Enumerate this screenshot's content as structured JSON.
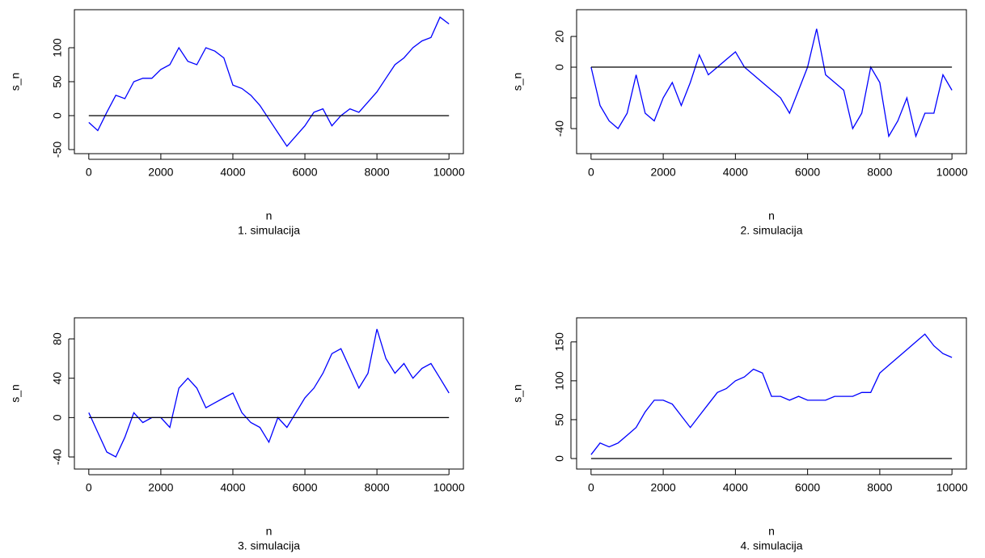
{
  "chart_data": [
    {
      "type": "line",
      "xlabel": "n",
      "ylabel": "s_n",
      "subtitle": "1. simulacija",
      "xlim": [
        -400,
        10400
      ],
      "ylim": [
        -56,
        156
      ],
      "xticks": [
        0,
        2000,
        4000,
        6000,
        8000,
        10000
      ],
      "yticks": [
        -50,
        0,
        50,
        100
      ],
      "series": [
        {
          "color": "#0000ff",
          "x": [
            0,
            250,
            500,
            750,
            1000,
            1250,
            1500,
            1750,
            2000,
            2250,
            2500,
            2750,
            3000,
            3250,
            3500,
            3750,
            4000,
            4250,
            4500,
            4750,
            5000,
            5250,
            5500,
            5750,
            6000,
            6250,
            6500,
            6750,
            7000,
            7250,
            7500,
            7750,
            8000,
            8250,
            8500,
            8750,
            9000,
            9250,
            9500,
            9750,
            10000
          ],
          "values": [
            -10,
            -22,
            5,
            30,
            25,
            50,
            55,
            55,
            68,
            75,
            100,
            80,
            75,
            100,
            95,
            85,
            45,
            40,
            30,
            15,
            -5,
            -25,
            -45,
            -30,
            -15,
            5,
            10,
            -15,
            0,
            10,
            5,
            20,
            35,
            55,
            75,
            85,
            100,
            110,
            115,
            145,
            135
          ]
        },
        {
          "color": "#000000",
          "x": [
            0,
            10000
          ],
          "values": [
            0,
            0
          ]
        }
      ]
    },
    {
      "type": "line",
      "xlabel": "n",
      "ylabel": "s_n",
      "subtitle": "2. simulacija",
      "xlim": [
        -400,
        10400
      ],
      "ylim": [
        -56.3,
        37.4
      ],
      "xticks": [
        0,
        2000,
        4000,
        6000,
        8000,
        10000
      ],
      "yticks": [
        -40,
        {
          "value": -20,
          "label": null
        },
        0,
        20
      ],
      "series": [
        {
          "color": "#0000ff",
          "x": [
            0,
            250,
            500,
            750,
            1000,
            1250,
            1500,
            1750,
            2000,
            2250,
            2500,
            2750,
            3000,
            3250,
            3500,
            3750,
            4000,
            4250,
            4500,
            4750,
            5000,
            5250,
            5500,
            5750,
            6000,
            6250,
            6500,
            6750,
            7000,
            7250,
            7500,
            7750,
            8000,
            8250,
            8500,
            8750,
            9000,
            9250,
            9500,
            9750,
            10000
          ],
          "values": [
            0,
            -25,
            -35,
            -40,
            -30,
            -5,
            -30,
            -35,
            -20,
            -10,
            -25,
            -10,
            8,
            -5,
            0,
            5,
            10,
            0,
            -5,
            -10,
            -15,
            -20,
            -30,
            -15,
            0,
            25,
            -5,
            -10,
            -15,
            -40,
            -30,
            0,
            -10,
            -45,
            -35,
            -20,
            -45,
            -30,
            -30,
            -5,
            -15
          ]
        },
        {
          "color": "#000000",
          "x": [
            0,
            10000
          ],
          "values": [
            0,
            0
          ]
        }
      ]
    },
    {
      "type": "line",
      "xlabel": "n",
      "ylabel": "s_n",
      "subtitle": "3. simulacija",
      "xlim": [
        -400,
        10400
      ],
      "ylim": [
        -52.3,
        101.4
      ],
      "xticks": [
        0,
        2000,
        4000,
        6000,
        8000,
        10000
      ],
      "yticks": [
        -40,
        0,
        40,
        80
      ],
      "series": [
        {
          "color": "#0000ff",
          "x": [
            0,
            250,
            500,
            750,
            1000,
            1250,
            1500,
            1750,
            2000,
            2250,
            2500,
            2750,
            3000,
            3250,
            3500,
            3750,
            4000,
            4250,
            4500,
            4750,
            5000,
            5250,
            5500,
            5750,
            6000,
            6250,
            6500,
            6750,
            7000,
            7250,
            7500,
            7750,
            8000,
            8250,
            8500,
            8750,
            9000,
            9250,
            9500,
            9750,
            10000
          ],
          "values": [
            5,
            -15,
            -35,
            -40,
            -20,
            5,
            -5,
            0,
            0,
            -10,
            30,
            40,
            30,
            10,
            15,
            20,
            25,
            5,
            -5,
            -10,
            -25,
            0,
            -10,
            5,
            20,
            30,
            45,
            65,
            70,
            50,
            30,
            45,
            90,
            60,
            45,
            55,
            40,
            50,
            55,
            40,
            25
          ]
        },
        {
          "color": "#000000",
          "x": [
            0,
            10000
          ],
          "values": [
            0,
            0
          ]
        }
      ]
    },
    {
      "type": "line",
      "xlabel": "n",
      "ylabel": "s_n",
      "subtitle": "4. simulacija",
      "xlim": [
        -400,
        10400
      ],
      "ylim": [
        -13.5,
        181
      ],
      "xticks": [
        0,
        2000,
        4000,
        6000,
        8000,
        10000
      ],
      "yticks": [
        0,
        50,
        100,
        150
      ],
      "series": [
        {
          "color": "#0000ff",
          "x": [
            0,
            250,
            500,
            750,
            1000,
            1250,
            1500,
            1750,
            2000,
            2250,
            2500,
            2750,
            3000,
            3250,
            3500,
            3750,
            4000,
            4250,
            4500,
            4750,
            5000,
            5250,
            5500,
            5750,
            6000,
            6250,
            6500,
            6750,
            7000,
            7250,
            7500,
            7750,
            8000,
            8250,
            8500,
            8750,
            9000,
            9250,
            9500,
            9750,
            10000
          ],
          "values": [
            5,
            20,
            15,
            20,
            30,
            40,
            60,
            75,
            75,
            70,
            55,
            40,
            55,
            70,
            85,
            90,
            100,
            105,
            115,
            110,
            80,
            80,
            75,
            80,
            75,
            75,
            75,
            80,
            80,
            80,
            85,
            85,
            110,
            120,
            130,
            140,
            150,
            160,
            145,
            135,
            130
          ]
        },
        {
          "color": "#000000",
          "x": [
            0,
            10000
          ],
          "values": [
            0,
            0
          ]
        }
      ]
    }
  ]
}
